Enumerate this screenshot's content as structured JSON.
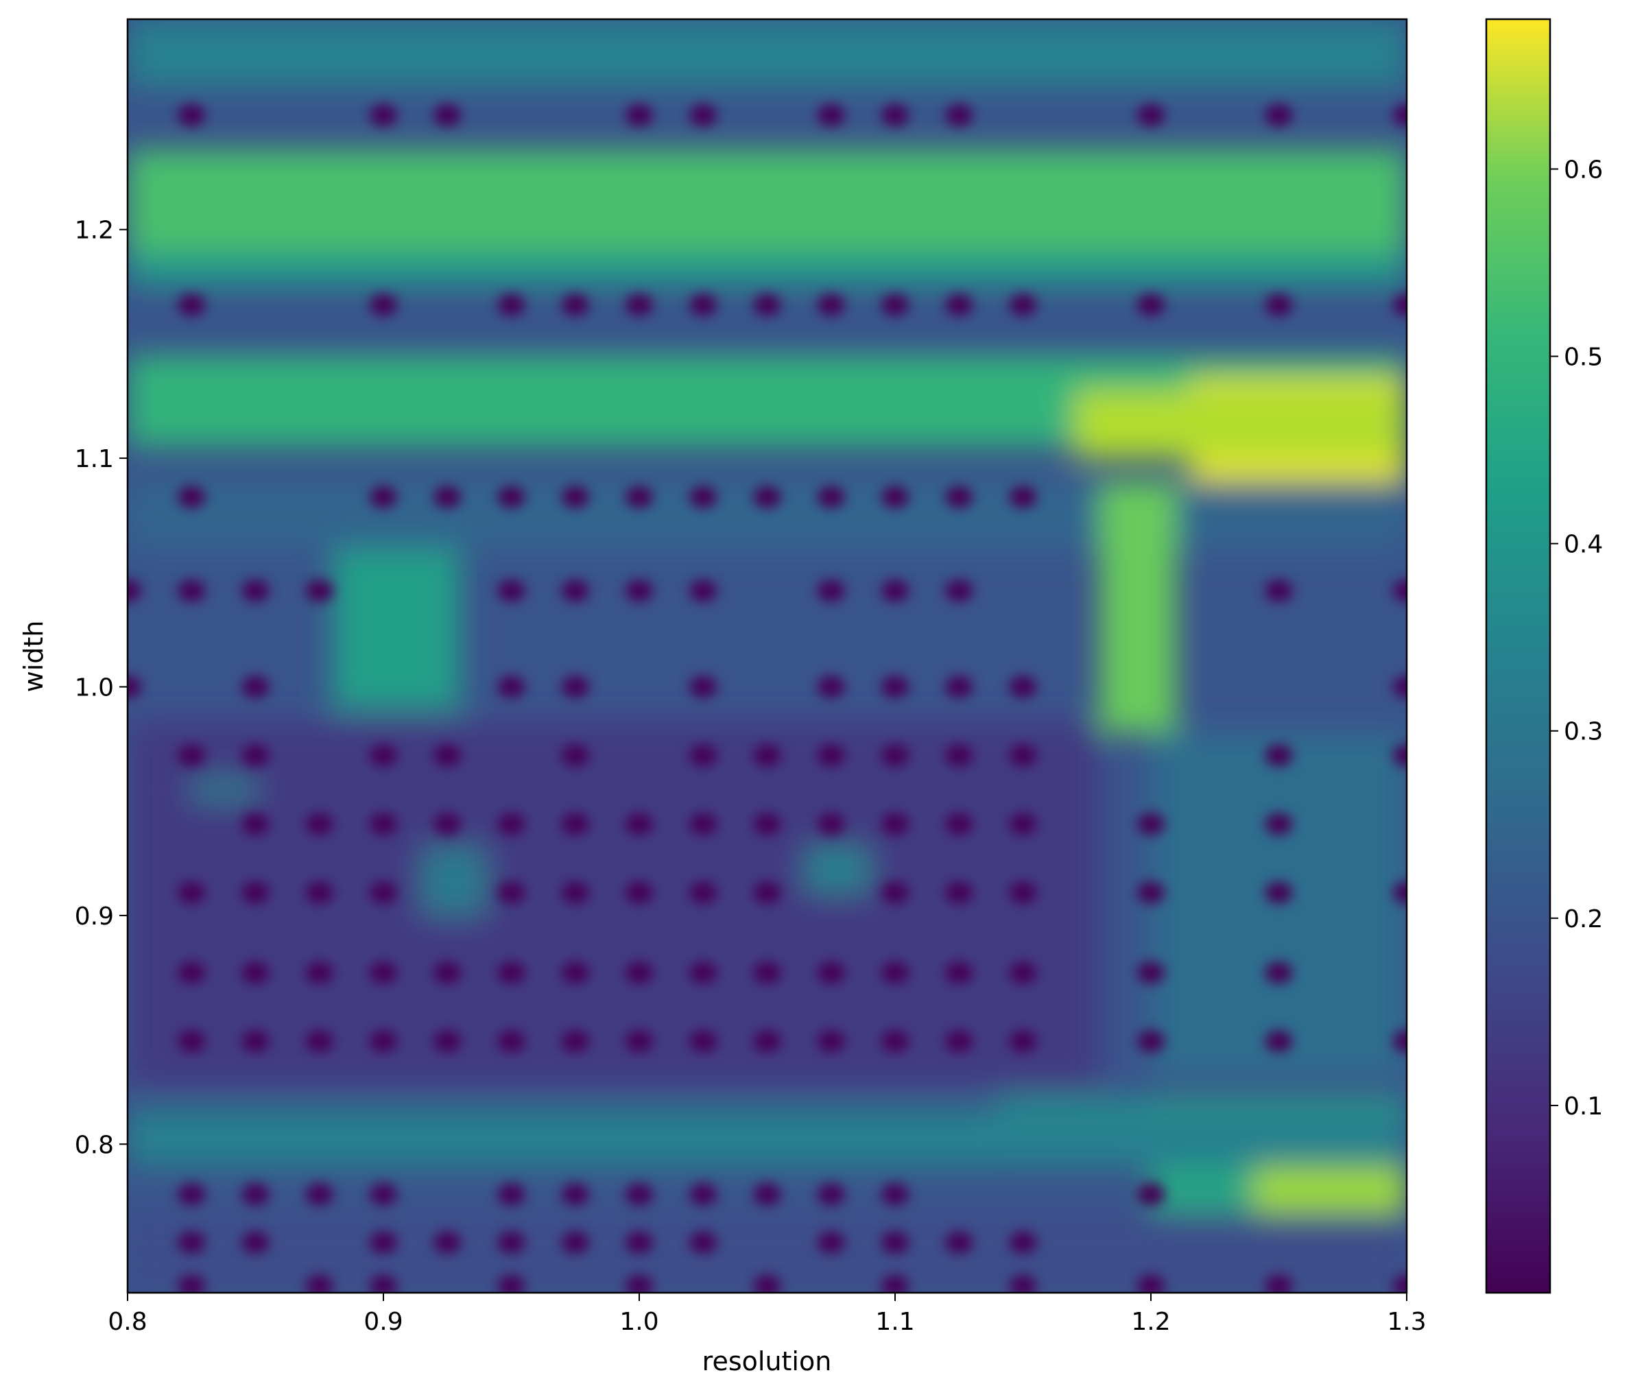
{
  "chart_data": {
    "type": "heatmap",
    "title": "",
    "xlabel": "resolution",
    "ylabel": "width",
    "xlim": [
      0.8,
      1.3
    ],
    "ylim": [
      0.735,
      1.292
    ],
    "x_ticks": [
      0.8,
      0.9,
      1.0,
      1.1,
      1.2,
      1.3
    ],
    "x_tick_labels": [
      "0.8",
      "0.9",
      "1.0",
      "1.1",
      "1.2",
      "1.3"
    ],
    "y_ticks": [
      0.8,
      0.9,
      1.0,
      1.1,
      1.2
    ],
    "y_tick_labels": [
      "0.8",
      "0.9",
      "1.0",
      "1.1",
      "1.2"
    ],
    "colormap": "viridis",
    "colorbar": {
      "range": [
        0.0,
        0.68
      ],
      "ticks": [
        0.1,
        0.2,
        0.3,
        0.4,
        0.5,
        0.6
      ],
      "tick_labels": [
        "0.1",
        "0.2",
        "0.3",
        "0.4",
        "0.5",
        "0.6"
      ]
    },
    "grid": false,
    "interpolation": "smooth",
    "regions": [
      {
        "description": "band at width 1.21 (upper)",
        "value": 0.5
      },
      {
        "description": "band at width 1.125",
        "value": 0.46
      },
      {
        "description": "high region resolution 1.22-1.3, width 1.1-1.12",
        "value": 0.67
      },
      {
        "description": "region resolution 1.18-1.2, width 0.98-1.08",
        "value": 0.55
      },
      {
        "description": "high region resolution 1.25-1.3, width 0.78",
        "value": 0.58
      },
      {
        "description": "band at width 0.8",
        "value": 0.33
      },
      {
        "description": "lower grid region width 0.83-0.98",
        "value": 0.12
      },
      {
        "description": "minima dots",
        "value": 0.0
      }
    ]
  }
}
